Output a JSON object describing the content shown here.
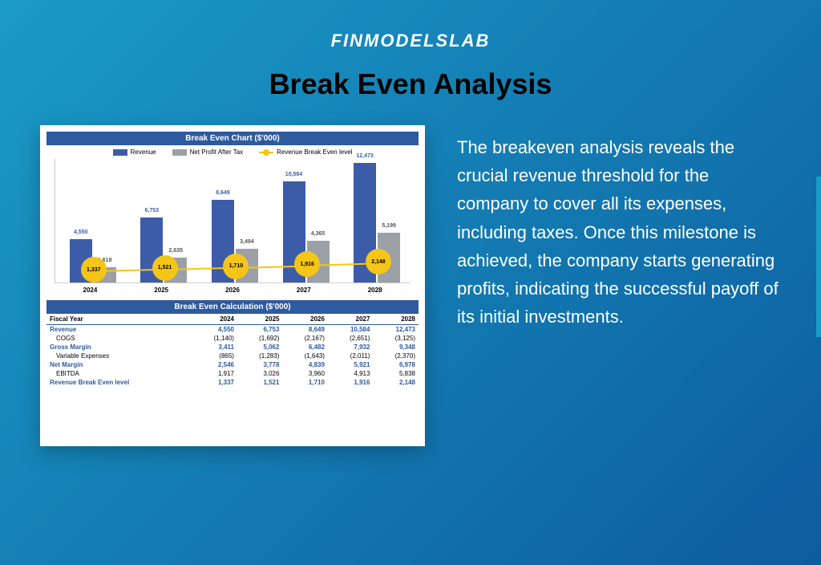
{
  "brand": "FINMODELSLAB",
  "title": "Break Even Analysis",
  "description": "The breakeven analysis reveals the crucial revenue threshold for the company to cover all its expenses, including taxes. Once this milestone is achieved, the company starts generating profits, indicating the successful payoff of its initial investments.",
  "chart": {
    "title": "Break Even Chart ($'000)",
    "legend": {
      "revenue": "Revenue",
      "net_profit": "Net Profit After Tax",
      "break_even": "Revenue Break Even level"
    },
    "colors": {
      "revenue": "#3d5ca8",
      "net_profit": "#9aa0a6",
      "break_even": "#f5c518",
      "header_bg": "#2e5a9e"
    },
    "years": [
      "2024",
      "2025",
      "2026",
      "2027",
      "2028"
    ],
    "revenue": [
      4550,
      6753,
      8649,
      10584,
      12473
    ],
    "net_profit": [
      1618,
      2635,
      3494,
      4365,
      5199
    ],
    "break_even": [
      1337,
      1521,
      1710,
      1916,
      2148
    ],
    "y_max": 13000,
    "group_positions_pct": [
      4,
      24,
      44,
      64,
      84
    ]
  },
  "table": {
    "title": "Break Even Calculation ($'000)",
    "col_header": "Fiscal Year",
    "years": [
      "2024",
      "2025",
      "2026",
      "2027",
      "2028"
    ],
    "rows": [
      {
        "label": "Revenue",
        "vals": [
          "4,550",
          "6,753",
          "8,649",
          "10,584",
          "12,473"
        ],
        "bold": true,
        "blue": true
      },
      {
        "label": "COGS",
        "vals": [
          "(1,140)",
          "(1,692)",
          "(2,167)",
          "(2,651)",
          "(3,125)"
        ],
        "bold": false,
        "blue": false
      },
      {
        "label": "Gross Margin",
        "vals": [
          "3,411",
          "5,062",
          "6,482",
          "7,932",
          "9,348"
        ],
        "bold": true,
        "blue": true
      },
      {
        "label": "Variable Expenses",
        "vals": [
          "(865)",
          "(1,283)",
          "(1,643)",
          "(2,011)",
          "(2,370)"
        ],
        "bold": false,
        "blue": false
      },
      {
        "label": "Net Margin",
        "vals": [
          "2,546",
          "3,778",
          "4,839",
          "5,921",
          "6,978"
        ],
        "bold": true,
        "blue": true
      },
      {
        "label": "EBITDA",
        "vals": [
          "1,917",
          "3,026",
          "3,960",
          "4,913",
          "5,838"
        ],
        "bold": false,
        "blue": false
      },
      {
        "label": "Revenue Break Even level",
        "vals": [
          "1,337",
          "1,521",
          "1,710",
          "1,916",
          "2,148"
        ],
        "bold": true,
        "blue": true
      }
    ]
  }
}
